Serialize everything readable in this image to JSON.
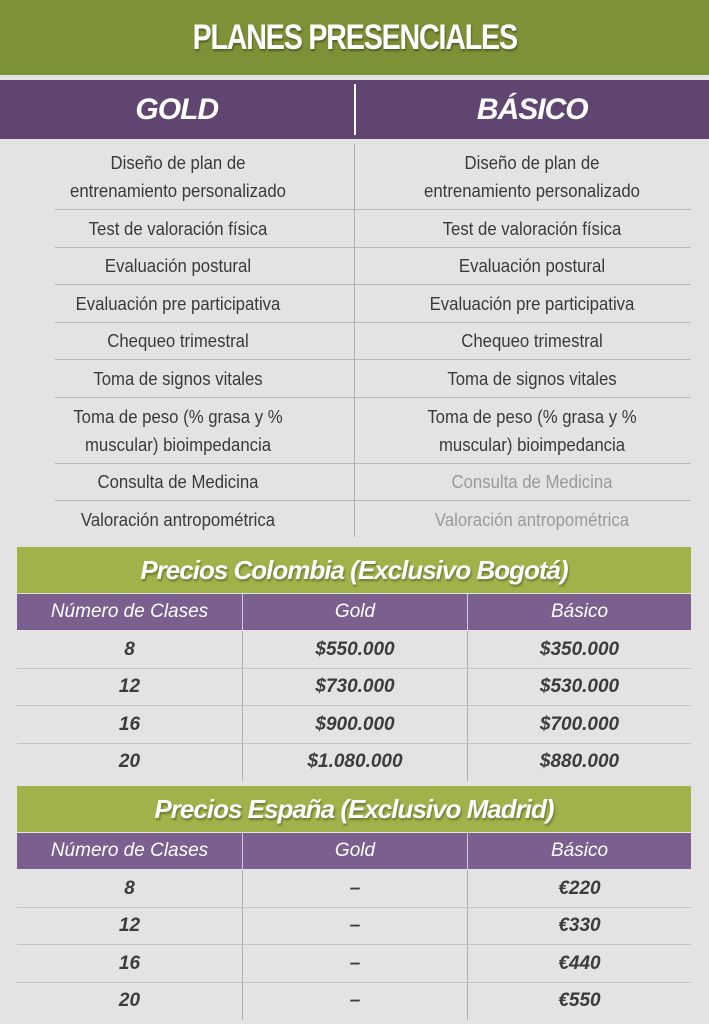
{
  "title": "PLANES PRESENCIALES",
  "plans": {
    "gold": "GOLD",
    "basico": "BÁSICO"
  },
  "features": [
    {
      "gold": "Diseño de plan de\nentrenamiento personalizado",
      "basico": "Diseño de plan de\nentrenamiento personalizado",
      "basico_included": true
    },
    {
      "gold": "Test de valoración física",
      "basico": "Test de valoración física",
      "basico_included": true
    },
    {
      "gold": "Evaluación postural",
      "basico": "Evaluación postural",
      "basico_included": true
    },
    {
      "gold": "Evaluación pre participativa",
      "basico": "Evaluación pre participativa",
      "basico_included": true
    },
    {
      "gold": "Chequeo trimestral",
      "basico": "Chequeo trimestral",
      "basico_included": true
    },
    {
      "gold": "Toma de signos vitales",
      "basico": "Toma de signos vitales",
      "basico_included": true
    },
    {
      "gold": "Toma de peso (% grasa y %\nmuscular) bioimpedancia",
      "basico": "Toma de peso (% grasa y %\nmuscular) bioimpedancia",
      "basico_included": true
    },
    {
      "gold": "Consulta de Medicina",
      "basico": "Consulta de Medicina",
      "basico_included": false
    },
    {
      "gold": "Valoración antropométrica",
      "basico": "Valoración antropométrica",
      "basico_included": false
    }
  ],
  "colombia": {
    "title": "Precios Colombia (Exclusivo Bogotá)",
    "headers": [
      "Número de Clases",
      "Gold",
      "Básico"
    ],
    "rows": [
      [
        "8",
        "$550.000",
        "$350.000"
      ],
      [
        "12",
        "$730.000",
        "$530.000"
      ],
      [
        "16",
        "$900.000",
        "$700.000"
      ],
      [
        "20",
        "$1.080.000",
        "$880.000"
      ]
    ]
  },
  "espana": {
    "title": "Precios España (Exclusivo Madrid)",
    "headers": [
      "Número de Clases",
      "Gold",
      "Básico"
    ],
    "rows": [
      [
        "8",
        "–",
        "€220"
      ],
      [
        "12",
        "–",
        "€330"
      ],
      [
        "16",
        "–",
        "€440"
      ],
      [
        "20",
        "–",
        "€550"
      ]
    ]
  },
  "colors": {
    "title_green": "#7d9136",
    "price_green": "#a0b34a",
    "plan_purple": "#5f4570",
    "head_purple": "#7a5f8f",
    "background": "#e3e3e3"
  }
}
